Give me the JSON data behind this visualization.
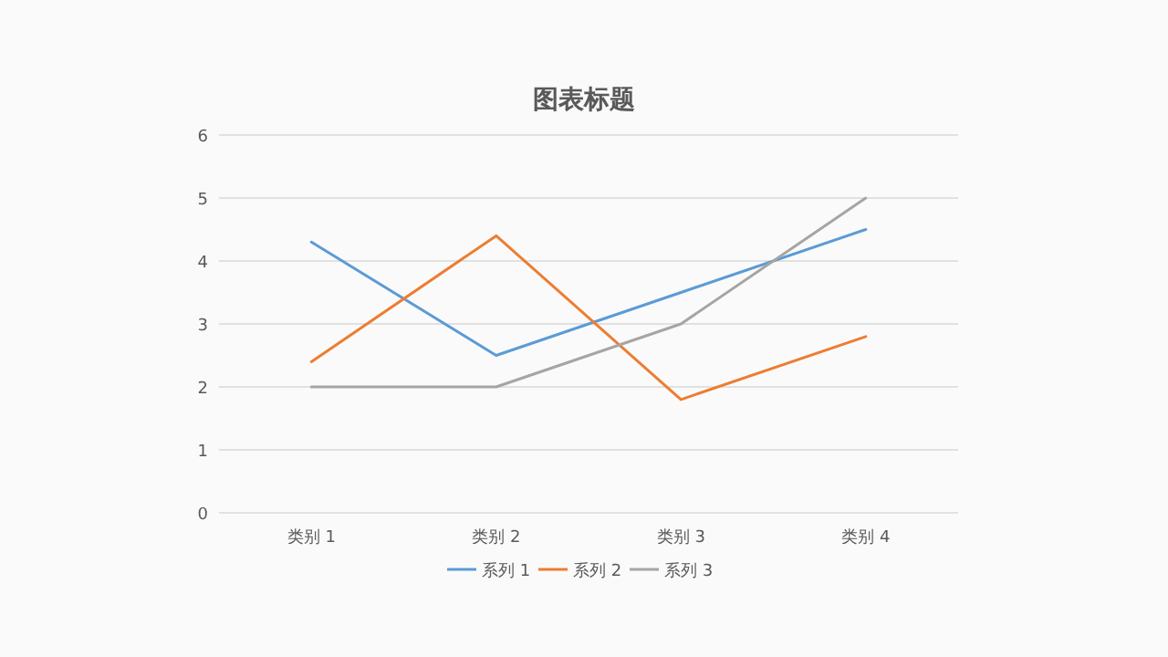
{
  "chart_data": {
    "type": "line",
    "title": "图表标题",
    "categories": [
      "类别 1",
      "类别 2",
      "类别 3",
      "类别 4"
    ],
    "series": [
      {
        "name": "系列 1",
        "color": "#5b9bd5",
        "values": [
          4.3,
          2.5,
          3.5,
          4.5
        ]
      },
      {
        "name": "系列 2",
        "color": "#ed7d31",
        "values": [
          2.4,
          4.4,
          1.8,
          2.8
        ]
      },
      {
        "name": "系列 3",
        "color": "#a5a5a5",
        "values": [
          2,
          2,
          3,
          5
        ]
      }
    ],
    "ylim": [
      0,
      6
    ],
    "yticks": [
      0,
      1,
      2,
      3,
      4,
      5,
      6
    ],
    "grid": "y",
    "legend": "bottom",
    "marker": "none",
    "line_style": "solid"
  }
}
